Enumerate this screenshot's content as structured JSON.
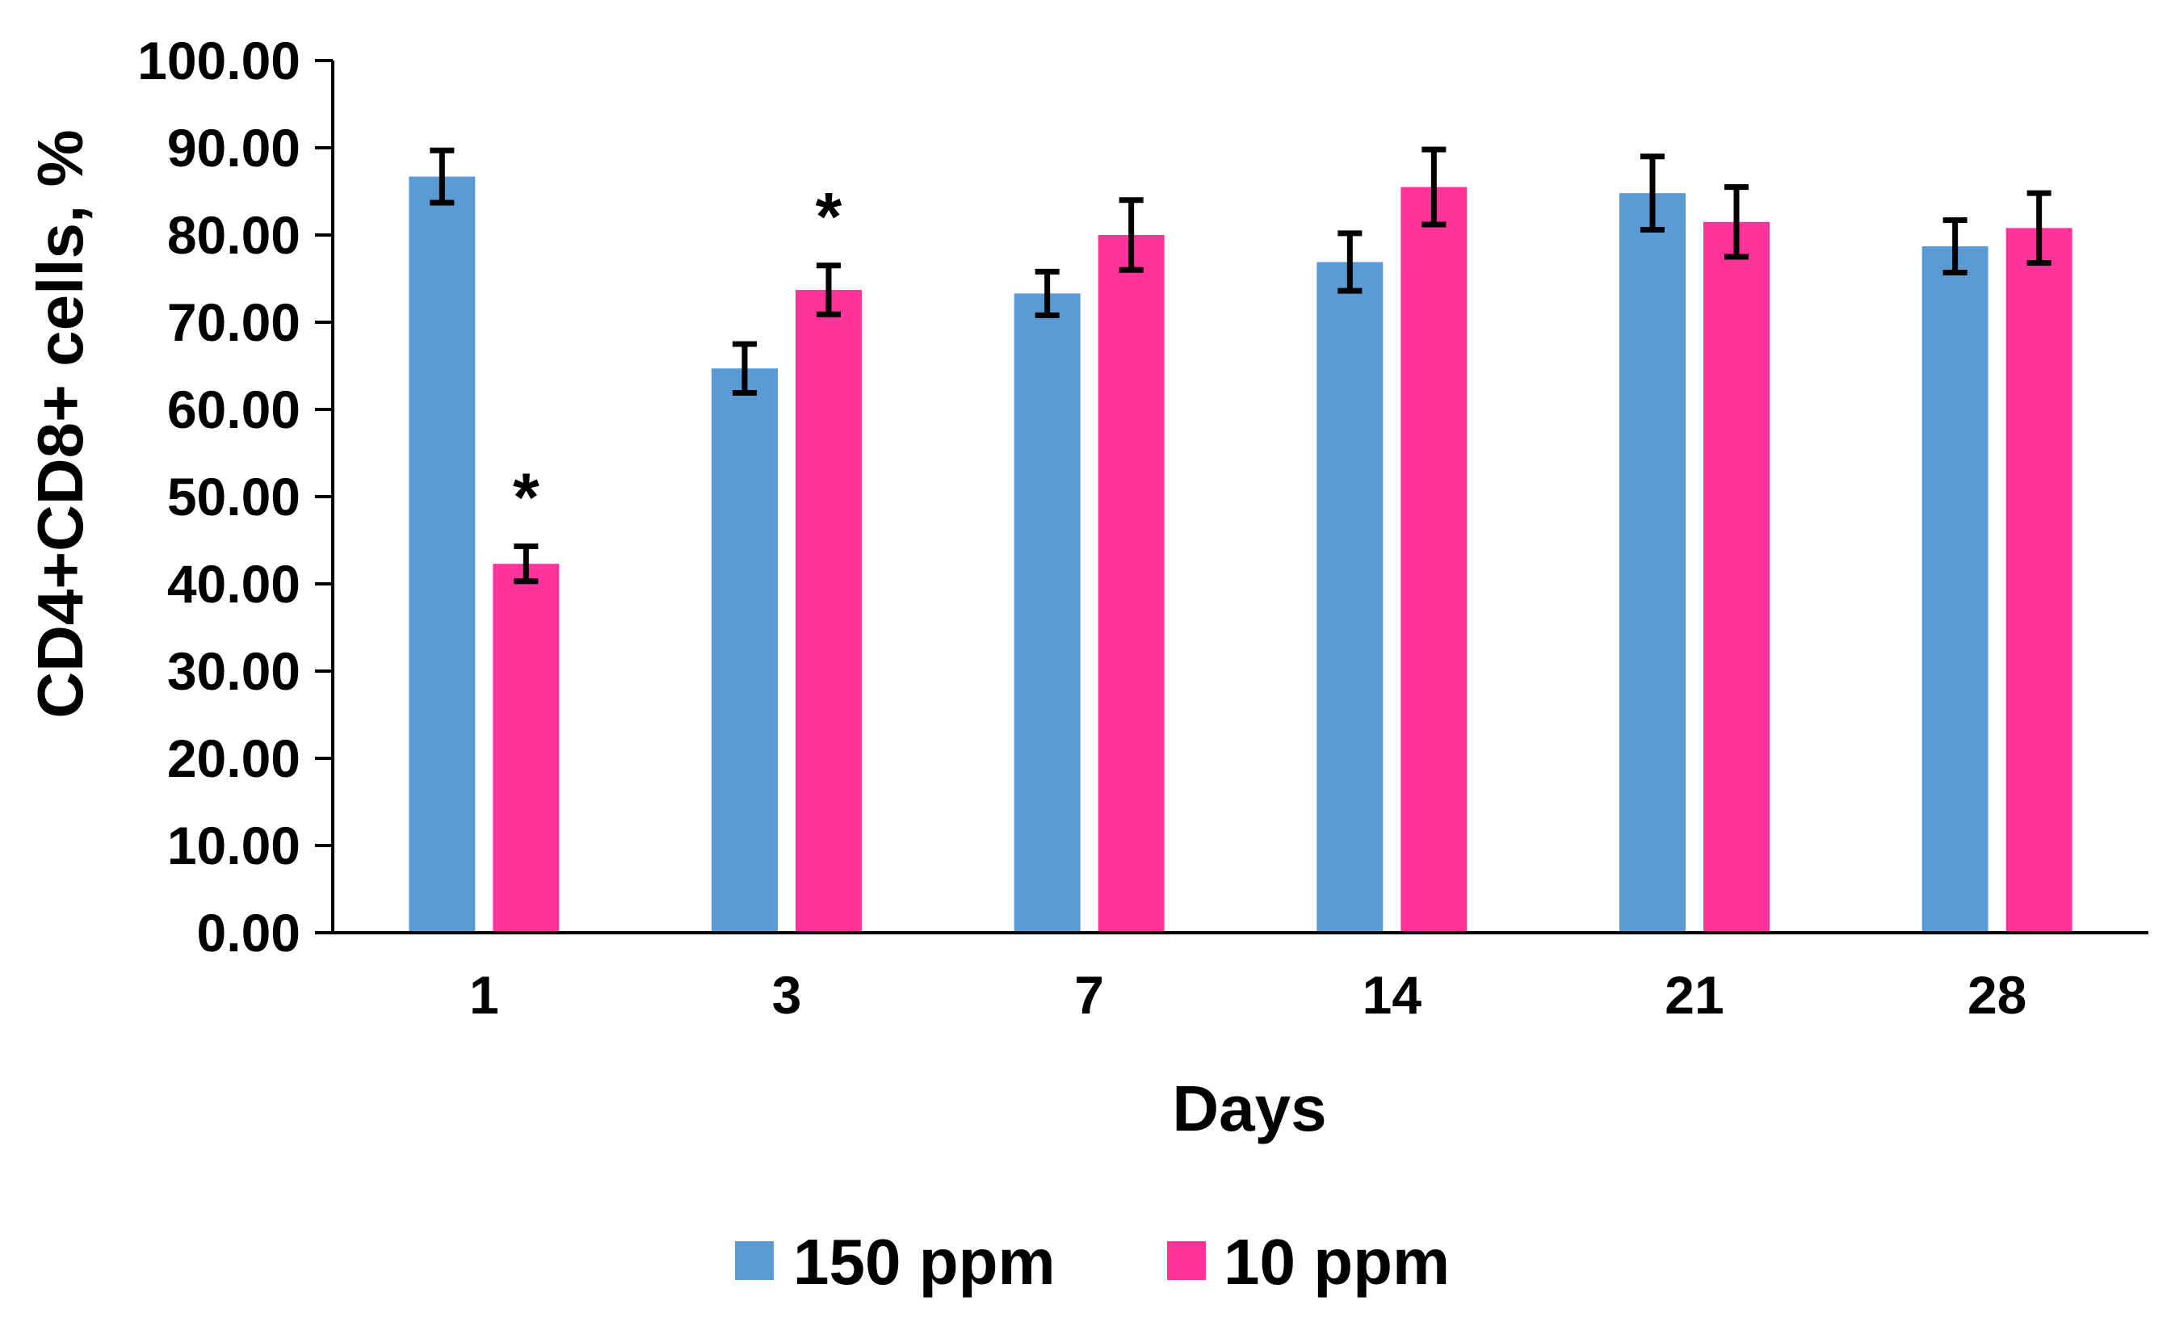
{
  "chart_data": {
    "type": "bar",
    "title": "",
    "xlabel": "Days",
    "ylabel": "CD4+CD8+ cells, %",
    "ylim": [
      0,
      100
    ],
    "yticks": [
      "0.00",
      "10.00",
      "20.00",
      "30.00",
      "40.00",
      "50.00",
      "60.00",
      "70.00",
      "80.00",
      "90.00",
      "100.00"
    ],
    "categories": [
      "1",
      "3",
      "7",
      "14",
      "21",
      "28"
    ],
    "series": [
      {
        "name": "150 ppm",
        "color": "#5B9BD5",
        "values": [
          86.7,
          64.7,
          73.3,
          76.9,
          84.8,
          78.7
        ],
        "errors": [
          3.0,
          2.8,
          2.5,
          3.3,
          4.2,
          3.0
        ],
        "significance": [
          "",
          "",
          "",
          "",
          "",
          ""
        ]
      },
      {
        "name": "10 ppm",
        "color": "#FF3399",
        "values": [
          42.3,
          73.7,
          80.0,
          85.5,
          81.5,
          80.8
        ],
        "errors": [
          2.0,
          2.8,
          4.0,
          4.3,
          4.0,
          4.0
        ],
        "significance": [
          "*",
          "*",
          "",
          "",
          "",
          ""
        ]
      }
    ],
    "legend_position": "bottom-center",
    "grid": false
  }
}
